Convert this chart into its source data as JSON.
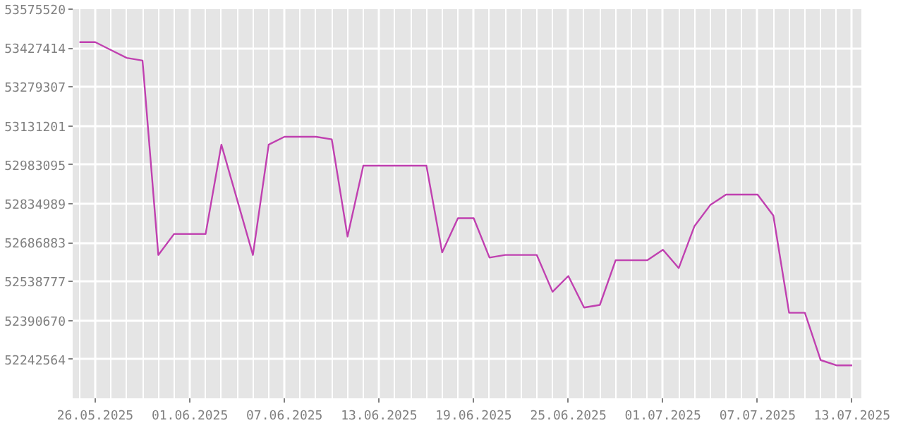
{
  "chart_data": {
    "type": "line",
    "x": [
      "2025-05-25",
      "2025-05-26",
      "2025-05-27",
      "2025-05-28",
      "2025-05-29",
      "2025-05-30",
      "2025-05-31",
      "2025-06-01",
      "2025-06-02",
      "2025-06-03",
      "2025-06-04",
      "2025-06-05",
      "2025-06-06",
      "2025-06-07",
      "2025-06-08",
      "2025-06-09",
      "2025-06-10",
      "2025-06-11",
      "2025-06-12",
      "2025-06-13",
      "2025-06-14",
      "2025-06-15",
      "2025-06-16",
      "2025-06-17",
      "2025-06-18",
      "2025-06-19",
      "2025-06-20",
      "2025-06-21",
      "2025-06-22",
      "2025-06-23",
      "2025-06-24",
      "2025-06-25",
      "2025-06-26",
      "2025-06-27",
      "2025-06-28",
      "2025-06-29",
      "2025-06-30",
      "2025-07-01",
      "2025-07-02",
      "2025-07-03",
      "2025-07-04",
      "2025-07-05",
      "2025-07-06",
      "2025-07-07",
      "2025-07-08",
      "2025-07-09",
      "2025-07-10",
      "2025-07-11",
      "2025-07-12",
      "2025-07-13"
    ],
    "series": [
      {
        "color": "#c040b0",
        "values": [
          53450000,
          53450000,
          53420000,
          53390000,
          53380000,
          52640000,
          52720000,
          52720000,
          52720000,
          53060000,
          52850000,
          52640000,
          53060000,
          53090000,
          53090000,
          53090000,
          53080000,
          52710000,
          52980000,
          52980000,
          52980000,
          52980000,
          52980000,
          52650000,
          52780000,
          52780000,
          52630000,
          52640000,
          52640000,
          52640000,
          52500000,
          52560000,
          52440000,
          52450000,
          52620000,
          52620000,
          52620000,
          52660000,
          52590000,
          52750000,
          52830000,
          52870000,
          52870000,
          52870000,
          52790000,
          52420000,
          52420000,
          52240000,
          52220000,
          52220000
        ]
      }
    ],
    "xlim": [
      "2025-05-24T13:40",
      "2025-07-13T14:00"
    ],
    "xticks": [
      {
        "value": "2025-05-26",
        "label": "26.05.2025"
      },
      {
        "value": "2025-06-01",
        "label": "01.06.2025"
      },
      {
        "value": "2025-06-07",
        "label": "07.06.2025"
      },
      {
        "value": "2025-06-13",
        "label": "13.06.2025"
      },
      {
        "value": "2025-06-19",
        "label": "19.06.2025"
      },
      {
        "value": "2025-06-25",
        "label": "25.06.2025"
      },
      {
        "value": "2025-07-01",
        "label": "01.07.2025"
      },
      {
        "value": "2025-07-07",
        "label": "07.07.2025"
      },
      {
        "value": "2025-07-13",
        "label": "13.07.2025"
      }
    ],
    "ylim": [
      52094460,
      53575520
    ],
    "yticks": [
      53575520,
      53427414,
      53279307,
      53131201,
      52983095,
      52834989,
      52686883,
      52538777,
      52390670,
      52242564
    ],
    "grid": true,
    "line_style": "solid"
  }
}
